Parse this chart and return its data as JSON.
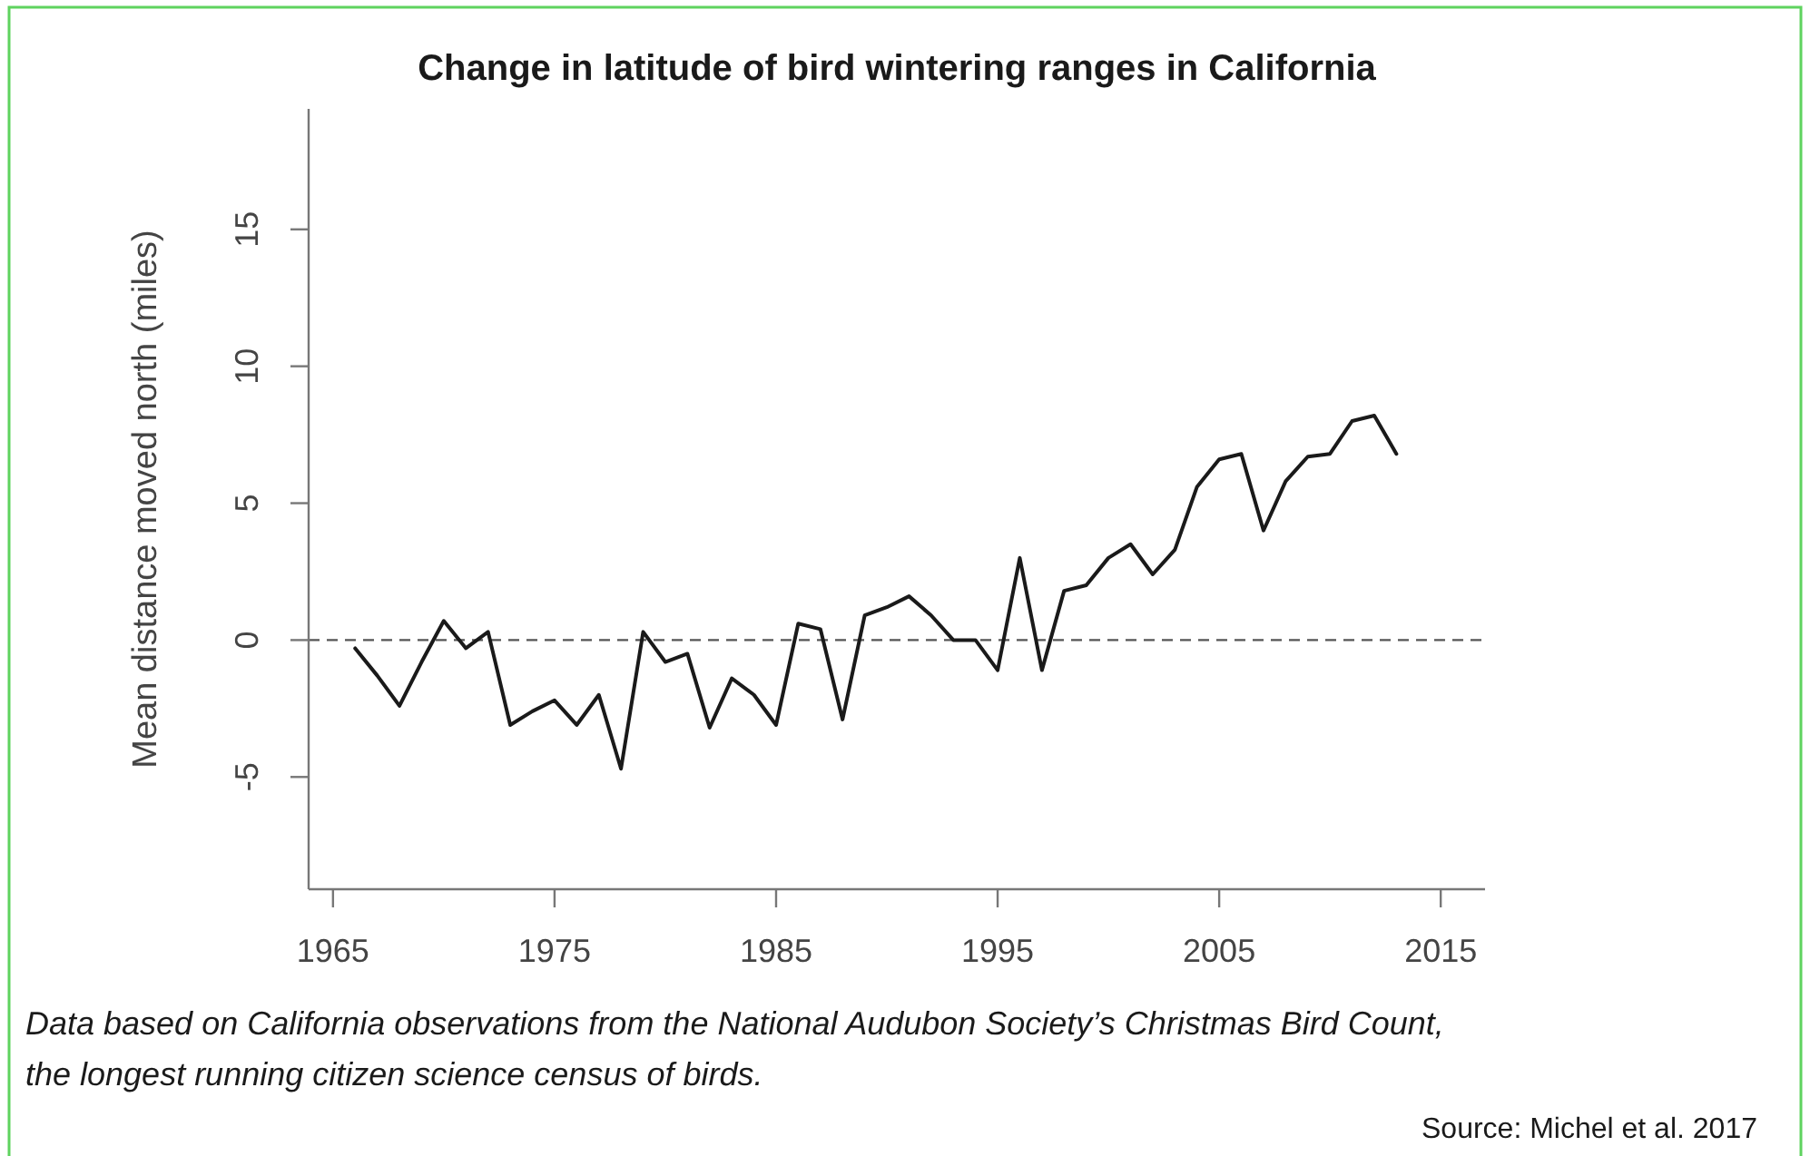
{
  "chart_data": {
    "type": "line",
    "title": "Change in latitude of bird wintering ranges in California",
    "ylabel": "Mean distance moved north (miles)",
    "x": [
      1966,
      1967,
      1968,
      1969,
      1970,
      1971,
      1972,
      1973,
      1974,
      1975,
      1976,
      1977,
      1978,
      1979,
      1980,
      1981,
      1982,
      1983,
      1984,
      1985,
      1986,
      1987,
      1988,
      1989,
      1990,
      1991,
      1992,
      1993,
      1994,
      1995,
      1996,
      1997,
      1998,
      1999,
      2000,
      2001,
      2002,
      2003,
      2004,
      2005,
      2006,
      2007,
      2008,
      2009,
      2010,
      2011,
      2012,
      2013
    ],
    "series": [
      {
        "color": "#1a1a1a",
        "values": [
          -0.3,
          -1.3,
          -2.4,
          -0.8,
          0.7,
          -0.3,
          0.3,
          -3.1,
          -2.6,
          -2.2,
          -3.1,
          -2.0,
          -4.7,
          0.3,
          -0.8,
          -0.5,
          -3.2,
          -1.4,
          -2.0,
          -3.1,
          0.6,
          0.4,
          -2.9,
          0.9,
          1.2,
          1.6,
          0.9,
          0.0,
          0.0,
          -1.1,
          3.0,
          -1.1,
          1.8,
          2.0,
          3.0,
          3.5,
          2.4,
          3.3,
          5.6,
          6.6,
          6.8,
          4.0,
          5.8,
          6.7,
          6.8,
          8.0,
          8.2,
          6.8
        ]
      }
    ],
    "xlim": [
      1963.9,
      2017
    ],
    "xticks": [
      1965,
      1975,
      1985,
      1995,
      2005,
      2015
    ],
    "ylim": [
      -9.1,
      19.4
    ],
    "yticks": [
      -5,
      0,
      5,
      10,
      15
    ],
    "ref_lines": [
      {
        "axis": "y",
        "value": 0,
        "color": "#555555",
        "line_style": "dashed"
      }
    ],
    "marker": "none",
    "line_style": "solid",
    "annotations": [
      "Data based on California observations from the National Audubon Society’s Christmas Bird Count,",
      "the longest running citizen science census of birds.",
      "Source: Michel et al. 2017"
    ]
  }
}
